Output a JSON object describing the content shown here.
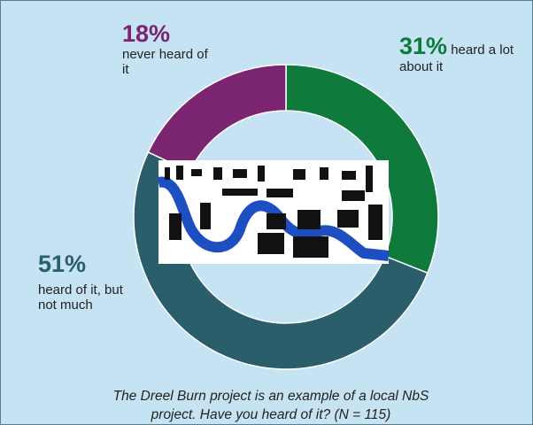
{
  "chart_data": {
    "type": "donut",
    "categories": [
      "heard a lot about it",
      "heard of it, but not much",
      "never heard of it"
    ],
    "values": [
      31,
      51,
      18
    ],
    "value_labels": [
      "31%",
      "51%",
      "18%"
    ],
    "colors": [
      "#0e7a3b",
      "#2b5e6b",
      "#7b2470"
    ],
    "caption": "The Dreel Burn project is an example of a local NbS project. Have you heard of it? (N =  115)"
  }
}
